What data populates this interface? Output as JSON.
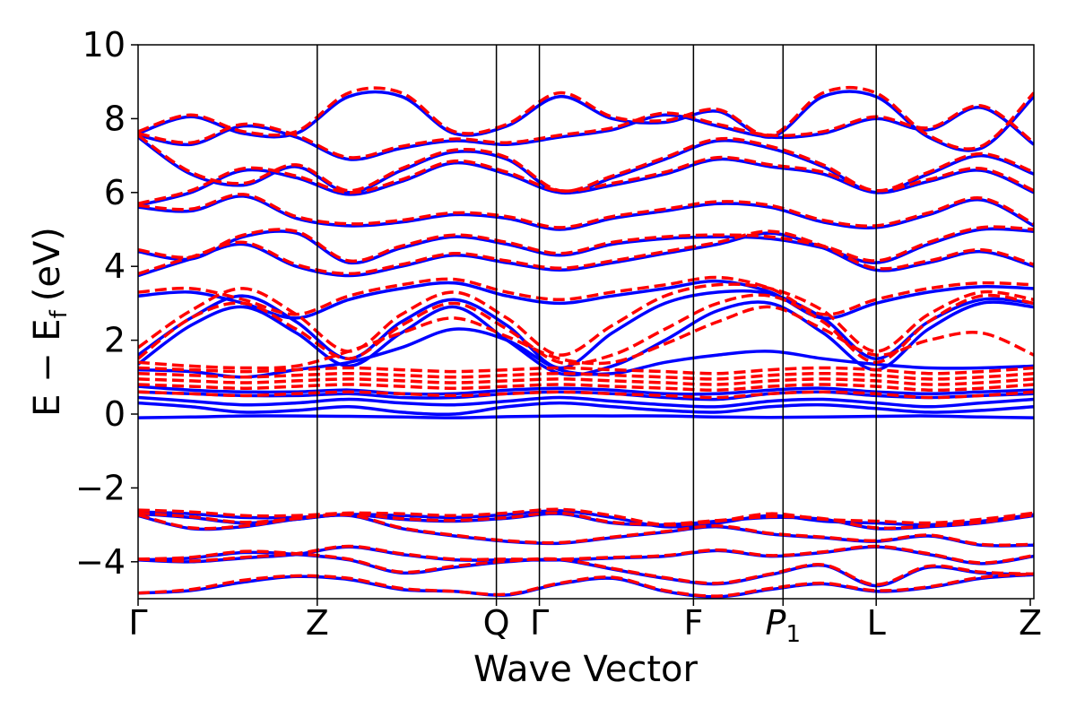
{
  "chart_data": {
    "type": "line",
    "title": "",
    "xlabel": "Wave Vector",
    "ylabel": "E − E",
    "ylabel_sub": "f",
    "ylabel_unit": "(eV)",
    "ylim": [
      -5,
      10
    ],
    "yticks": [
      10,
      8,
      6,
      4,
      2,
      0,
      -2,
      -4
    ],
    "ytick_labels": [
      "10",
      "8",
      "6",
      "4",
      "2",
      "0",
      "−2",
      "−4"
    ],
    "xlim": [
      0,
      5.0
    ],
    "kpoints": [
      {
        "label": "Γ",
        "x": 0.0
      },
      {
        "label": "Z",
        "x": 1.0
      },
      {
        "label": "Q",
        "x": 2.0
      },
      {
        "label": "Γ",
        "x": 2.24
      },
      {
        "label": "F",
        "x": 3.1
      },
      {
        "label": "P",
        "sub": "1",
        "italic": true,
        "x": 3.6
      },
      {
        "label": "L",
        "x": 4.12
      },
      {
        "label": "Z",
        "x": 4.98
      }
    ],
    "series": [
      {
        "name": "band-structure-solid",
        "style": "solid",
        "color": "#0000ff",
        "bands": [
          [
            -4.85,
            -4.78,
            -4.55,
            -4.4,
            -4.48,
            -4.75,
            -4.8,
            -4.9,
            -4.6,
            -4.45,
            -4.8,
            -4.95,
            -4.75,
            -4.6,
            -4.8,
            -4.7,
            -4.45,
            -4.35
          ],
          [
            -3.95,
            -3.9,
            -3.75,
            -3.8,
            -3.95,
            -4.3,
            -4.15,
            -4.0,
            -3.95,
            -4.2,
            -4.45,
            -4.6,
            -4.35,
            -4.1,
            -4.65,
            -4.15,
            -4.3,
            -4.35
          ],
          [
            -3.95,
            -4.0,
            -3.9,
            -3.8,
            -3.6,
            -3.8,
            -3.95,
            -3.95,
            -3.95,
            -3.9,
            -3.85,
            -3.7,
            -3.85,
            -3.75,
            -3.6,
            -3.8,
            -4.05,
            -3.85
          ],
          [
            -2.75,
            -3.1,
            -3.05,
            -2.85,
            -2.75,
            -3.1,
            -3.3,
            -3.45,
            -3.5,
            -3.35,
            -3.2,
            -3.05,
            -3.25,
            -3.35,
            -3.45,
            -3.3,
            -3.55,
            -3.55
          ],
          [
            -2.7,
            -2.8,
            -2.95,
            -2.85,
            -2.72,
            -2.85,
            -2.9,
            -2.82,
            -2.7,
            -2.95,
            -3.0,
            -2.9,
            -2.8,
            -2.85,
            -3.1,
            -3.05,
            -2.95,
            -2.75
          ],
          [
            -2.65,
            -2.7,
            -2.8,
            -2.8,
            -2.72,
            -2.75,
            -2.8,
            -2.72,
            -2.62,
            -2.8,
            -3.05,
            -2.95,
            -2.75,
            -2.9,
            -2.95,
            -3.0,
            -2.9,
            -2.72
          ],
          [
            -0.1,
            -0.08,
            -0.05,
            -0.05,
            -0.06,
            -0.08,
            -0.1,
            -0.07,
            -0.05,
            -0.05,
            -0.05,
            -0.08,
            -0.09,
            -0.08,
            -0.06,
            -0.05,
            -0.08,
            -0.1
          ],
          [
            0.3,
            0.2,
            0.05,
            0.1,
            0.2,
            0.05,
            0.0,
            0.2,
            0.3,
            0.2,
            0.1,
            0.05,
            0.2,
            0.25,
            0.15,
            0.05,
            0.1,
            0.2
          ],
          [
            0.45,
            0.35,
            0.25,
            0.3,
            0.4,
            0.3,
            0.25,
            0.35,
            0.45,
            0.35,
            0.25,
            0.2,
            0.35,
            0.4,
            0.3,
            0.2,
            0.3,
            0.4
          ],
          [
            0.6,
            0.55,
            0.5,
            0.5,
            0.55,
            0.45,
            0.45,
            0.55,
            0.6,
            0.55,
            0.45,
            0.4,
            0.55,
            0.6,
            0.5,
            0.45,
            0.5,
            0.55
          ],
          [
            0.75,
            0.65,
            0.6,
            0.6,
            0.65,
            0.55,
            0.55,
            0.65,
            0.7,
            0.65,
            0.55,
            0.55,
            0.65,
            0.7,
            0.6,
            0.55,
            0.6,
            0.65
          ],
          [
            1.2,
            1.15,
            1.0,
            1.2,
            1.4,
            1.8,
            2.3,
            2.0,
            1.2,
            1.1,
            1.4,
            1.6,
            1.7,
            1.5,
            1.35,
            1.25,
            1.25,
            1.3
          ],
          [
            1.35,
            2.4,
            2.9,
            2.2,
            1.3,
            2.2,
            2.9,
            2.0,
            1.1,
            1.3,
            2.0,
            2.8,
            3.0,
            2.2,
            1.2,
            2.3,
            3.0,
            2.9
          ],
          [
            1.6,
            2.6,
            3.2,
            2.5,
            1.5,
            2.5,
            3.1,
            2.4,
            1.25,
            2.2,
            3.0,
            3.3,
            3.25,
            2.6,
            1.5,
            2.5,
            3.1,
            3.0
          ],
          [
            3.2,
            3.3,
            3.0,
            2.6,
            3.1,
            3.4,
            3.55,
            3.2,
            3.0,
            3.2,
            3.4,
            3.6,
            3.3,
            2.6,
            3.0,
            3.3,
            3.45,
            3.4
          ],
          [
            3.75,
            4.2,
            4.6,
            4.0,
            3.75,
            4.0,
            4.3,
            4.1,
            3.9,
            4.1,
            4.35,
            4.6,
            4.9,
            4.5,
            3.9,
            4.1,
            4.4,
            4.0
          ],
          [
            4.4,
            4.2,
            4.8,
            4.9,
            4.1,
            4.5,
            4.8,
            4.6,
            4.3,
            4.6,
            4.75,
            4.8,
            4.75,
            4.5,
            4.1,
            4.6,
            5.0,
            4.95
          ],
          [
            5.6,
            5.5,
            5.9,
            5.3,
            5.1,
            5.2,
            5.4,
            5.3,
            5.0,
            5.3,
            5.5,
            5.7,
            5.6,
            5.2,
            5.05,
            5.4,
            5.8,
            5.1
          ],
          [
            5.65,
            6.0,
            6.6,
            6.4,
            5.95,
            6.3,
            6.8,
            6.5,
            6.0,
            6.2,
            6.5,
            6.9,
            6.7,
            6.5,
            6.0,
            6.3,
            6.6,
            6.0
          ],
          [
            7.5,
            6.5,
            6.2,
            6.7,
            6.0,
            6.6,
            7.1,
            6.9,
            6.0,
            6.4,
            6.9,
            7.4,
            7.2,
            6.7,
            6.0,
            6.5,
            7.0,
            6.5
          ],
          [
            7.55,
            7.3,
            7.8,
            7.5,
            6.9,
            7.2,
            7.4,
            7.3,
            7.5,
            7.7,
            8.1,
            7.8,
            7.5,
            7.6,
            8.0,
            7.7,
            8.3,
            7.3
          ],
          [
            7.6,
            8.05,
            7.6,
            7.6,
            8.6,
            8.6,
            7.6,
            7.8,
            8.6,
            8.0,
            7.9,
            8.2,
            7.5,
            8.6,
            8.6,
            7.5,
            7.2,
            8.6
          ]
        ]
      },
      {
        "name": "band-structure-dashed",
        "style": "dashed",
        "color": "#ff0000",
        "bands": [
          [
            -4.85,
            -4.75,
            -4.5,
            -4.38,
            -4.45,
            -4.72,
            -4.8,
            -4.88,
            -4.58,
            -4.42,
            -4.78,
            -4.93,
            -4.72,
            -4.58,
            -4.78,
            -4.68,
            -4.42,
            -4.33
          ],
          [
            -3.93,
            -3.88,
            -3.72,
            -3.78,
            -3.93,
            -4.28,
            -4.12,
            -3.98,
            -3.93,
            -4.18,
            -4.43,
            -4.58,
            -4.33,
            -4.08,
            -4.62,
            -4.12,
            -4.28,
            -4.33
          ],
          [
            -3.93,
            -3.98,
            -3.88,
            -3.78,
            -3.58,
            -3.78,
            -3.93,
            -3.93,
            -3.93,
            -3.88,
            -3.83,
            -3.68,
            -3.83,
            -3.73,
            -3.58,
            -3.78,
            -4.03,
            -3.83
          ],
          [
            -2.73,
            -3.08,
            -3.03,
            -2.83,
            -2.73,
            -3.08,
            -3.28,
            -3.43,
            -3.48,
            -3.33,
            -3.18,
            -3.03,
            -3.23,
            -3.33,
            -3.43,
            -3.28,
            -3.53,
            -3.53
          ],
          [
            -2.68,
            -2.78,
            -2.93,
            -2.83,
            -2.7,
            -2.83,
            -2.88,
            -2.8,
            -2.68,
            -2.93,
            -2.98,
            -2.88,
            -2.78,
            -2.83,
            -3.08,
            -3.03,
            -2.93,
            -2.73
          ],
          [
            -2.6,
            -2.65,
            -2.75,
            -2.75,
            -2.68,
            -2.7,
            -2.75,
            -2.68,
            -2.58,
            -2.75,
            -3.0,
            -2.9,
            -2.7,
            -2.85,
            -2.9,
            -2.95,
            -2.85,
            -2.68
          ],
          [
            0.6,
            0.55,
            0.5,
            0.55,
            0.6,
            0.55,
            0.5,
            0.55,
            0.6,
            0.55,
            0.5,
            0.45,
            0.55,
            0.6,
            0.55,
            0.45,
            0.5,
            0.6
          ],
          [
            0.8,
            0.75,
            0.7,
            0.75,
            0.8,
            0.75,
            0.7,
            0.75,
            0.8,
            0.75,
            0.7,
            0.65,
            0.75,
            0.8,
            0.75,
            0.65,
            0.7,
            0.8
          ],
          [
            0.95,
            0.9,
            0.85,
            0.9,
            0.95,
            0.9,
            0.85,
            0.9,
            0.95,
            0.9,
            0.85,
            0.8,
            0.9,
            0.95,
            0.9,
            0.8,
            0.85,
            0.95
          ],
          [
            1.1,
            1.05,
            1.0,
            1.05,
            1.1,
            1.05,
            1.0,
            1.05,
            1.1,
            1.05,
            1.0,
            0.95,
            1.05,
            1.1,
            1.05,
            0.95,
            1.0,
            1.1
          ],
          [
            1.25,
            1.2,
            1.15,
            1.2,
            1.25,
            1.2,
            1.15,
            1.2,
            1.25,
            1.2,
            1.15,
            1.1,
            1.2,
            1.25,
            1.2,
            1.1,
            1.15,
            1.25
          ],
          [
            1.4,
            1.3,
            1.25,
            1.3,
            1.7,
            2.2,
            2.6,
            2.1,
            1.5,
            1.4,
            1.9,
            2.5,
            2.9,
            2.3,
            1.6,
            2.0,
            2.2,
            1.6
          ],
          [
            1.5,
            2.6,
            3.0,
            2.3,
            1.5,
            2.4,
            3.0,
            2.3,
            1.4,
            1.6,
            2.3,
            3.0,
            3.2,
            2.5,
            1.4,
            2.5,
            3.2,
            3.0
          ],
          [
            1.8,
            2.8,
            3.4,
            2.7,
            1.7,
            2.7,
            3.3,
            2.6,
            1.6,
            2.4,
            3.2,
            3.5,
            3.4,
            2.8,
            1.7,
            2.7,
            3.3,
            3.1
          ],
          [
            3.3,
            3.4,
            3.1,
            2.7,
            3.2,
            3.5,
            3.65,
            3.3,
            3.1,
            3.3,
            3.5,
            3.7,
            3.4,
            2.7,
            3.1,
            3.4,
            3.55,
            3.5
          ],
          [
            3.8,
            4.25,
            4.65,
            4.05,
            3.8,
            4.05,
            4.35,
            4.15,
            3.95,
            4.15,
            4.4,
            4.65,
            4.95,
            4.55,
            3.95,
            4.15,
            4.45,
            4.05
          ],
          [
            4.45,
            4.25,
            4.85,
            4.95,
            4.15,
            4.55,
            4.85,
            4.65,
            4.35,
            4.65,
            4.8,
            4.85,
            4.8,
            4.55,
            4.15,
            4.65,
            5.05,
            5.0
          ],
          [
            5.65,
            5.55,
            5.95,
            5.35,
            5.15,
            5.25,
            5.45,
            5.35,
            5.05,
            5.35,
            5.55,
            5.75,
            5.65,
            5.25,
            5.1,
            5.45,
            5.85,
            5.15
          ],
          [
            5.7,
            6.05,
            6.65,
            6.45,
            6.0,
            6.35,
            6.85,
            6.55,
            6.05,
            6.25,
            6.55,
            6.95,
            6.75,
            6.55,
            6.05,
            6.35,
            6.65,
            6.05
          ],
          [
            7.55,
            6.55,
            6.25,
            6.75,
            6.05,
            6.65,
            7.15,
            6.95,
            6.05,
            6.45,
            6.95,
            7.45,
            7.25,
            6.75,
            6.05,
            6.55,
            7.05,
            6.55
          ],
          [
            7.6,
            7.35,
            7.85,
            7.55,
            6.95,
            7.25,
            7.45,
            7.35,
            7.55,
            7.75,
            8.15,
            7.85,
            7.55,
            7.65,
            8.05,
            7.75,
            8.35,
            7.35
          ],
          [
            7.65,
            8.1,
            7.65,
            7.65,
            8.7,
            8.7,
            7.65,
            7.85,
            8.7,
            8.05,
            7.95,
            8.25,
            7.55,
            8.7,
            8.7,
            7.55,
            7.25,
            8.7
          ]
        ]
      }
    ]
  }
}
